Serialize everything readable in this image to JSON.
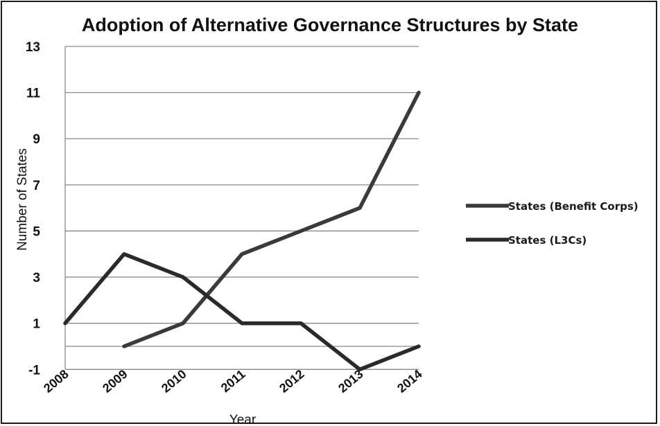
{
  "chart_data": {
    "type": "line",
    "title": "Adoption of Alternative Governance Structures by State",
    "xlabel": "Year",
    "ylabel": "Number of States",
    "categories": [
      "2008",
      "2009",
      "2010",
      "2011",
      "2012",
      "2013",
      "2014"
    ],
    "y_ticks": [
      "13",
      "11",
      "9",
      "7",
      "5",
      "3",
      "1",
      "-1"
    ],
    "ylim": [
      -1,
      13
    ],
    "grid": true,
    "legend_position": "right",
    "series": [
      {
        "name": "States (Benefit Corps)",
        "values": [
          null,
          0,
          1,
          4,
          5,
          6,
          11
        ],
        "color": "#3a3a3a"
      },
      {
        "name": "States (L3Cs)",
        "values": [
          1,
          4,
          3,
          1,
          1,
          -1,
          0
        ],
        "color": "#2a2a2a"
      }
    ]
  }
}
